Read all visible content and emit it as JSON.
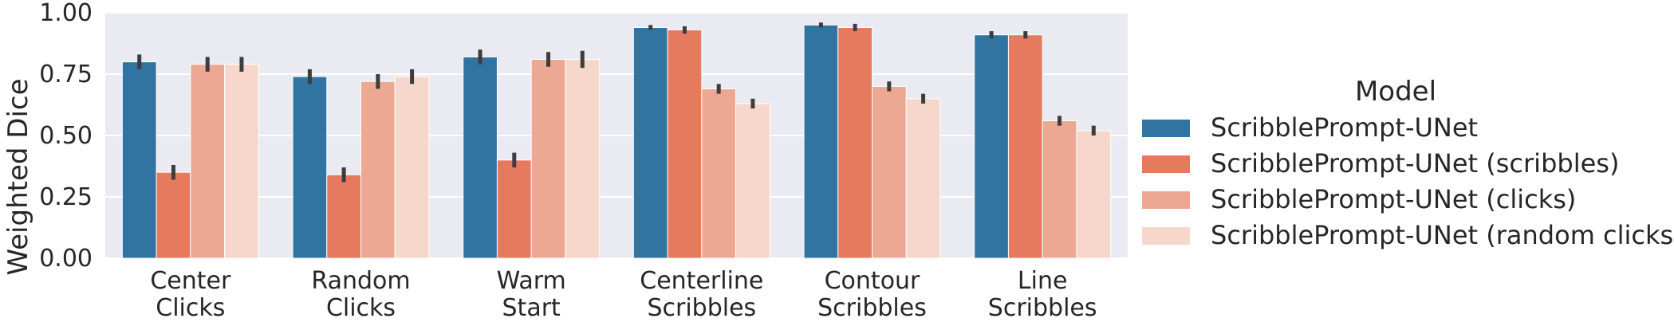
{
  "chart_data": {
    "type": "bar",
    "ylabel": "Weighted Dice",
    "ylim": [
      0,
      1.0
    ],
    "yticks": [
      "0.00",
      "0.25",
      "0.50",
      "0.75",
      "1.00"
    ],
    "ytick_values": [
      0,
      0.25,
      0.5,
      0.75,
      1.0
    ],
    "grid": true,
    "legend_placement": "right",
    "legend_title": "Model",
    "categories": [
      [
        "Center",
        "Clicks"
      ],
      [
        "Random",
        "Clicks"
      ],
      [
        "Warm",
        "Start"
      ],
      [
        "Centerline",
        "Scribbles"
      ],
      [
        "Contour",
        "Scribbles"
      ],
      [
        "Line",
        "Scribbles"
      ]
    ],
    "series": [
      {
        "name": "ScribblePrompt-UNet",
        "color": "#3274a1",
        "values": [
          0.8,
          0.74,
          0.82,
          0.94,
          0.95,
          0.91
        ],
        "err": [
          0.03,
          0.03,
          0.03,
          0.01,
          0.01,
          0.015
        ]
      },
      {
        "name": "ScribblePrompt-UNet (scribbles)",
        "color": "#e67a5f",
        "values": [
          0.35,
          0.34,
          0.4,
          0.93,
          0.94,
          0.91
        ],
        "err": [
          0.03,
          0.03,
          0.03,
          0.015,
          0.015,
          0.015
        ]
      },
      {
        "name": "ScribblePrompt-UNet (clicks)",
        "color": "#eda893",
        "values": [
          0.79,
          0.72,
          0.81,
          0.69,
          0.7,
          0.56
        ],
        "err": [
          0.03,
          0.03,
          0.03,
          0.02,
          0.02,
          0.02
        ]
      },
      {
        "name": "ScribblePrompt-UNet (random clicks)",
        "color": "#f7d7cb",
        "values": [
          0.79,
          0.74,
          0.81,
          0.63,
          0.65,
          0.52
        ],
        "err": [
          0.03,
          0.03,
          0.035,
          0.02,
          0.02,
          0.02
        ]
      }
    ]
  }
}
